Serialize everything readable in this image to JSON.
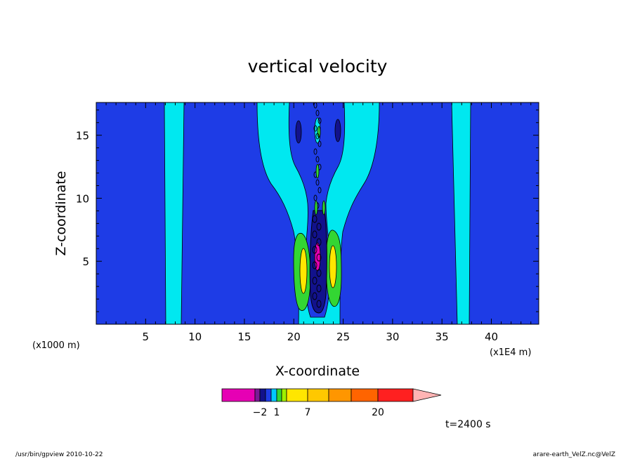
{
  "chart_data": {
    "type": "heatmap",
    "title": "vertical velocity",
    "xlabel": "X-coordinate",
    "ylabel": "Z-coordinate",
    "x_unit_left": "(x1000 m)",
    "x_unit_right": "(x1E4 m)",
    "xlim": [
      0,
      44.8
    ],
    "ylim": [
      0,
      17.6
    ],
    "x_ticks": [
      5,
      10,
      15,
      20,
      25,
      30,
      35,
      40
    ],
    "y_ticks": [
      5,
      10,
      15
    ],
    "colorbar": {
      "tick_labels": [
        {
          "value": -2,
          "label": "−2"
        },
        {
          "value": 1,
          "label": "1"
        },
        {
          "value": 7,
          "label": "7"
        },
        {
          "value": 20,
          "label": "20"
        }
      ],
      "extend": "max",
      "colors": [
        "#e600b4",
        "#7a1a96",
        "#12128c",
        "#1e3ce6",
        "#00c8ff",
        "#33d633",
        "#a0f000",
        "#ffe600",
        "#ffc800",
        "#ff9600",
        "#ff6400",
        "#ff2020",
        "#ff7c78",
        "#ffb4b4"
      ]
    },
    "field_levels": {
      "background": "#1e3ce6",
      "weak_updraft": "#00e8f0",
      "weak_downdraft": "#12128c",
      "moderate_updraft": "#33d633",
      "strong_updraft": "#ffe600",
      "strong_downdraft": "#e600b4",
      "contour_line": "#000000"
    },
    "time_label": "t=2400 s"
  },
  "footer": {
    "left": "/usr/bin/gpview   2010-10-22",
    "right": "arare-earth_VelZ.nc@VelZ"
  }
}
